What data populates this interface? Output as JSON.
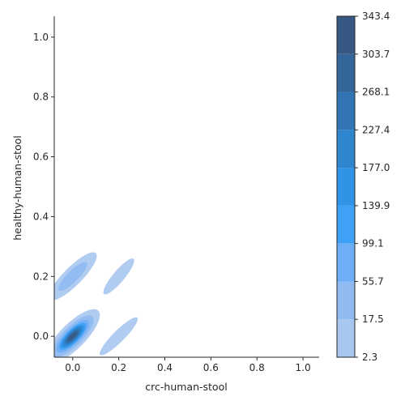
{
  "chart_data": {
    "type": "heatmap",
    "subtype": "filled-kde-contour",
    "title": "",
    "xlabel": "crc-human-stool",
    "ylabel": "healthy-human-stool",
    "xlim": [
      -0.08,
      1.07
    ],
    "ylim": [
      -0.07,
      1.07
    ],
    "x_ticks": [
      0.0,
      0.2,
      0.4,
      0.6,
      0.8,
      1.0
    ],
    "x_tick_labels": [
      "0.0",
      "0.2",
      "0.4",
      "0.6",
      "0.8",
      "1.0"
    ],
    "y_ticks": [
      0.0,
      0.2,
      0.4,
      0.6,
      0.8,
      1.0
    ],
    "y_tick_labels": [
      "0.0",
      "0.2",
      "0.4",
      "0.6",
      "0.8",
      "1.0"
    ],
    "grid": false,
    "colorbar": {
      "position": "right",
      "levels": [
        2.3,
        17.5,
        55.7,
        99.1,
        139.9,
        177.0,
        227.4,
        268.1,
        303.7,
        343.4
      ],
      "labels": [
        "2.3",
        "17.5",
        "55.7",
        "99.1",
        "139.9",
        "177.0",
        "227.4",
        "268.1",
        "303.7",
        "343.4"
      ],
      "colors": [
        "#a7c6f0",
        "#8fbaf2",
        "#6eaef6",
        "#3ea0f6",
        "#2f93e6",
        "#2f86cf",
        "#3275b4",
        "#35669b",
        "#375882",
        "#3a4a68"
      ]
    },
    "clusters": [
      {
        "center": [
          0.0,
          0.0
        ],
        "rx": 0.055,
        "ry": 0.055,
        "angle_deg": 45,
        "peak_density": 343.4
      },
      {
        "center": [
          0.0,
          0.2
        ],
        "rx": 0.04,
        "ry": 0.05,
        "angle_deg": 45,
        "peak_density": 55.7
      },
      {
        "center": [
          0.2,
          0.2
        ],
        "rx": 0.025,
        "ry": 0.035,
        "angle_deg": 40,
        "peak_density": 17.5
      },
      {
        "center": [
          0.2,
          0.0
        ],
        "rx": 0.025,
        "ry": 0.04,
        "angle_deg": 45,
        "peak_density": 17.5
      }
    ]
  }
}
